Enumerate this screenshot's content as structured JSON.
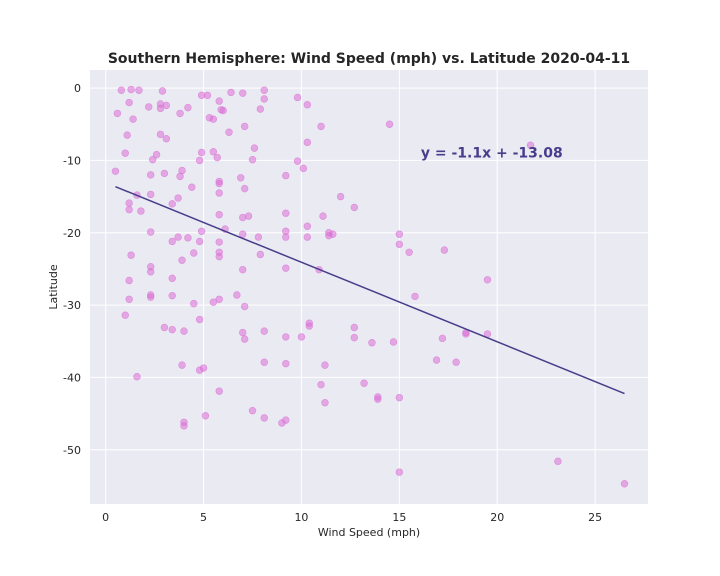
{
  "chart_data": {
    "type": "scatter",
    "title": "Southern Hemisphere: Wind Speed (mph) vs. Latitude 2020-04-11",
    "xlabel": "Wind Speed (mph)",
    "ylabel": "Latitude",
    "xlim": [
      -0.8,
      27.7
    ],
    "ylim": [
      -57.5,
      2.5
    ],
    "xticks": [
      0,
      5,
      10,
      15,
      20,
      25
    ],
    "yticks": [
      0,
      -10,
      -20,
      -30,
      -40,
      -50
    ],
    "grid": true,
    "point_color": "#da70d6",
    "line_color": "#483d8b",
    "equation_color": "#483d8b",
    "background_color": "#eaeaf2",
    "regression": {
      "slope": -1.1,
      "intercept": -13.08,
      "x_range": [
        0.5,
        26.5
      ],
      "equation_text": "y = -1.1x + -13.08",
      "equation_pos": [
        16.1,
        -9.6
      ]
    },
    "points": [
      [
        0.8,
        -0.3
      ],
      [
        1.3,
        -0.2
      ],
      [
        1.7,
        -0.3
      ],
      [
        0.6,
        -3.5
      ],
      [
        1.2,
        -2.0
      ],
      [
        1.4,
        -4.3
      ],
      [
        2.2,
        -2.6
      ],
      [
        2.8,
        -2.2
      ],
      [
        2.9,
        -0.4
      ],
      [
        3.1,
        -2.4
      ],
      [
        3.8,
        -3.5
      ],
      [
        2.8,
        -2.8
      ],
      [
        1.1,
        -6.5
      ],
      [
        1.0,
        -9.0
      ],
      [
        2.8,
        -6.4
      ],
      [
        3.1,
        -7.0
      ],
      [
        2.4,
        -9.9
      ],
      [
        2.6,
        -9.2
      ],
      [
        4.2,
        -2.7
      ],
      [
        4.9,
        -1.0
      ],
      [
        5.2,
        -1.0
      ],
      [
        5.3,
        -4.1
      ],
      [
        5.5,
        -4.3
      ],
      [
        5.8,
        -1.8
      ],
      [
        5.9,
        -3.0
      ],
      [
        6.0,
        -3.1
      ],
      [
        6.3,
        -6.1
      ],
      [
        6.4,
        -0.6
      ],
      [
        7.0,
        -0.7
      ],
      [
        7.1,
        -5.3
      ],
      [
        7.9,
        -2.9
      ],
      [
        8.1,
        -0.3
      ],
      [
        8.1,
        -1.5
      ],
      [
        9.8,
        -1.3
      ],
      [
        10.3,
        -2.3
      ],
      [
        11.0,
        -5.3
      ],
      [
        14.5,
        -5.0
      ],
      [
        21.7,
        -7.9
      ],
      [
        0.5,
        -11.5
      ],
      [
        1.2,
        -15.9
      ],
      [
        1.6,
        -14.8
      ],
      [
        2.3,
        -12.0
      ],
      [
        2.3,
        -14.7
      ],
      [
        3.0,
        -11.8
      ],
      [
        3.4,
        -16.0
      ],
      [
        3.7,
        -15.2
      ],
      [
        3.9,
        -11.4
      ],
      [
        3.8,
        -12.2
      ],
      [
        4.4,
        -13.7
      ],
      [
        4.8,
        -10.0
      ],
      [
        4.9,
        -8.9
      ],
      [
        5.5,
        -8.8
      ],
      [
        5.7,
        -9.6
      ],
      [
        5.8,
        -12.9
      ],
      [
        5.8,
        -13.2
      ],
      [
        5.8,
        -14.5
      ],
      [
        6.9,
        -12.4
      ],
      [
        7.1,
        -13.9
      ],
      [
        7.6,
        -8.3
      ],
      [
        7.5,
        -9.9
      ],
      [
        9.2,
        -12.1
      ],
      [
        9.8,
        -10.1
      ],
      [
        10.1,
        -11.1
      ],
      [
        10.3,
        -7.5
      ],
      [
        1.2,
        -16.8
      ],
      [
        1.8,
        -17.0
      ],
      [
        2.3,
        -19.9
      ],
      [
        3.4,
        -21.2
      ],
      [
        3.7,
        -20.6
      ],
      [
        3.9,
        -23.8
      ],
      [
        4.2,
        -20.7
      ],
      [
        4.5,
        -22.8
      ],
      [
        4.8,
        -21.2
      ],
      [
        4.9,
        -19.8
      ],
      [
        5.8,
        -17.5
      ],
      [
        5.8,
        -21.3
      ],
      [
        5.8,
        -22.7
      ],
      [
        5.8,
        -23.3
      ],
      [
        6.1,
        -19.5
      ],
      [
        7.0,
        -20.2
      ],
      [
        7.0,
        -17.9
      ],
      [
        7.3,
        -17.7
      ],
      [
        7.8,
        -20.6
      ],
      [
        7.9,
        -23.0
      ],
      [
        9.2,
        -17.3
      ],
      [
        9.2,
        -19.8
      ],
      [
        9.2,
        -20.6
      ],
      [
        10.3,
        -19.1
      ],
      [
        10.3,
        -20.6
      ],
      [
        11.1,
        -17.7
      ],
      [
        11.4,
        -20.0
      ],
      [
        11.4,
        -20.4
      ],
      [
        11.6,
        -20.2
      ],
      [
        12.0,
        -15.0
      ],
      [
        12.7,
        -16.5
      ],
      [
        15.0,
        -20.2
      ],
      [
        15.0,
        -21.6
      ],
      [
        15.5,
        -22.7
      ],
      [
        17.3,
        -22.4
      ],
      [
        1.3,
        -23.1
      ],
      [
        2.3,
        -24.7
      ],
      [
        2.3,
        -25.4
      ],
      [
        1.2,
        -26.6
      ],
      [
        2.3,
        -28.6
      ],
      [
        2.3,
        -28.9
      ],
      [
        1.2,
        -29.2
      ],
      [
        1.0,
        -31.4
      ],
      [
        3.4,
        -26.3
      ],
      [
        3.4,
        -28.7
      ],
      [
        3.0,
        -33.1
      ],
      [
        3.4,
        -33.4
      ],
      [
        4.0,
        -33.6
      ],
      [
        4.5,
        -29.8
      ],
      [
        4.8,
        -32.0
      ],
      [
        5.5,
        -29.6
      ],
      [
        5.8,
        -29.2
      ],
      [
        6.7,
        -28.6
      ],
      [
        7.0,
        -25.1
      ],
      [
        7.1,
        -30.2
      ],
      [
        8.1,
        -33.6
      ],
      [
        9.2,
        -24.9
      ],
      [
        9.2,
        -34.4
      ],
      [
        10.0,
        -34.4
      ],
      [
        10.4,
        -32.5
      ],
      [
        10.4,
        -32.9
      ],
      [
        10.9,
        -25.1
      ],
      [
        12.7,
        -33.1
      ],
      [
        12.7,
        -34.5
      ],
      [
        13.6,
        -35.2
      ],
      [
        14.7,
        -35.1
      ],
      [
        15.8,
        -28.8
      ],
      [
        18.4,
        -33.8
      ],
      [
        18.4,
        -34.0
      ],
      [
        19.5,
        -34.0
      ],
      [
        19.5,
        -26.5
      ],
      [
        1.6,
        -39.9
      ],
      [
        3.9,
        -38.3
      ],
      [
        4.8,
        -39.0
      ],
      [
        5.0,
        -38.7
      ],
      [
        5.8,
        -41.9
      ],
      [
        7.0,
        -33.8
      ],
      [
        7.1,
        -34.7
      ],
      [
        8.1,
        -37.9
      ],
      [
        9.2,
        -38.1
      ],
      [
        11.0,
        -41.0
      ],
      [
        11.2,
        -38.3
      ],
      [
        13.2,
        -40.8
      ],
      [
        13.9,
        -42.7
      ],
      [
        13.9,
        -43.0
      ],
      [
        15.0,
        -42.8
      ],
      [
        16.9,
        -37.6
      ],
      [
        17.2,
        -34.6
      ],
      [
        17.9,
        -37.9
      ],
      [
        4.0,
        -46.2
      ],
      [
        4.0,
        -46.7
      ],
      [
        5.1,
        -45.3
      ],
      [
        7.5,
        -44.6
      ],
      [
        8.1,
        -45.6
      ],
      [
        9.0,
        -46.3
      ],
      [
        9.2,
        -45.9
      ],
      [
        11.2,
        -43.5
      ],
      [
        15.0,
        -53.1
      ],
      [
        23.1,
        -51.6
      ],
      [
        26.5,
        -54.7
      ]
    ]
  }
}
